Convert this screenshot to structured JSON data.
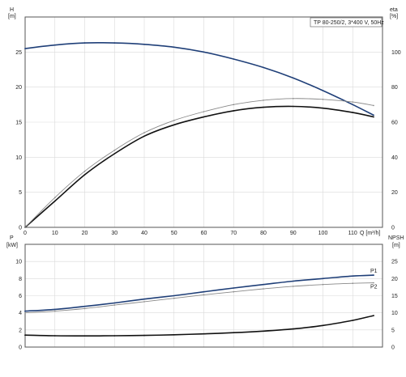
{
  "chart_data": [
    {
      "type": "line",
      "title": "TP 80-250/2, 3*400 V, 50Hz",
      "xlabel": "Q [m³/h]",
      "ylabel_left": [
        "H",
        "[m]"
      ],
      "ylabel_right": [
        "eta",
        "[%]"
      ],
      "xlim": [
        0,
        120
      ],
      "ylim_left": [
        0,
        30
      ],
      "ylim_right": [
        0,
        120
      ],
      "x_ticks": [
        "0",
        "10",
        "20",
        "30",
        "40",
        "50",
        "60",
        "70",
        "80",
        "90",
        "100",
        "110"
      ],
      "y_ticks_left": [
        "0",
        "5",
        "10",
        "15",
        "20",
        "25"
      ],
      "y_ticks_right": [
        "0",
        "20",
        "40",
        "60",
        "80",
        "100"
      ],
      "grid": true,
      "series": [
        {
          "axis": "left",
          "color": "#1f3f78",
          "x": [
            0,
            10,
            20,
            30,
            40,
            50,
            60,
            70,
            80,
            90,
            100,
            110,
            117
          ],
          "values": [
            25.5,
            26.0,
            26.3,
            26.3,
            26.1,
            25.7,
            25.0,
            24.0,
            22.8,
            21.3,
            19.5,
            17.5,
            16.0
          ]
        },
        {
          "axis": "right",
          "color": "#111111",
          "x": [
            0,
            10,
            20,
            30,
            40,
            50,
            60,
            70,
            80,
            90,
            100,
            110,
            117
          ],
          "values": [
            0,
            15,
            30,
            42,
            52,
            58.5,
            63,
            66.5,
            68.5,
            69,
            68,
            65.5,
            63
          ]
        },
        {
          "axis": "right",
          "color": "#888888",
          "x": [
            0,
            10,
            20,
            30,
            40,
            50,
            60,
            70,
            80,
            90,
            100,
            110,
            117
          ],
          "values": [
            0,
            17,
            32,
            44,
            54,
            61,
            66,
            70,
            72.5,
            73.5,
            73,
            71.5,
            69.5
          ]
        }
      ]
    },
    {
      "type": "line",
      "title": "",
      "xlabel": "",
      "ylabel_left": [
        "P",
        "[kW]"
      ],
      "ylabel_right": [
        "NPSH",
        "[m]"
      ],
      "xlim": [
        0,
        120
      ],
      "ylim_left": [
        0,
        12
      ],
      "ylim_right": [
        0,
        30
      ],
      "y_ticks_left": [
        "0",
        "2",
        "4",
        "6",
        "8",
        "10"
      ],
      "y_ticks_right": [
        "0",
        "5",
        "10",
        "15",
        "20",
        "25"
      ],
      "grid": true,
      "series": [
        {
          "name": "P1",
          "axis": "left",
          "color": "#1f3f78",
          "x": [
            0,
            10,
            20,
            30,
            40,
            50,
            60,
            70,
            80,
            90,
            100,
            110,
            117
          ],
          "values": [
            4.2,
            4.4,
            4.75,
            5.15,
            5.6,
            6.0,
            6.45,
            6.9,
            7.3,
            7.7,
            8.0,
            8.3,
            8.4
          ]
        },
        {
          "name": "P2",
          "axis": "left",
          "color": "#888888",
          "x": [
            0,
            10,
            20,
            30,
            40,
            50,
            60,
            70,
            80,
            90,
            100,
            110,
            117
          ],
          "values": [
            4.0,
            4.2,
            4.5,
            4.9,
            5.3,
            5.7,
            6.1,
            6.45,
            6.8,
            7.1,
            7.3,
            7.45,
            7.5
          ]
        },
        {
          "axis": "right",
          "color": "#111111",
          "x": [
            0,
            10,
            20,
            30,
            40,
            50,
            60,
            70,
            80,
            90,
            100,
            110,
            117
          ],
          "values": [
            3.5,
            3.3,
            3.25,
            3.3,
            3.4,
            3.6,
            3.85,
            4.2,
            4.65,
            5.3,
            6.3,
            7.8,
            9.2
          ]
        }
      ]
    }
  ]
}
